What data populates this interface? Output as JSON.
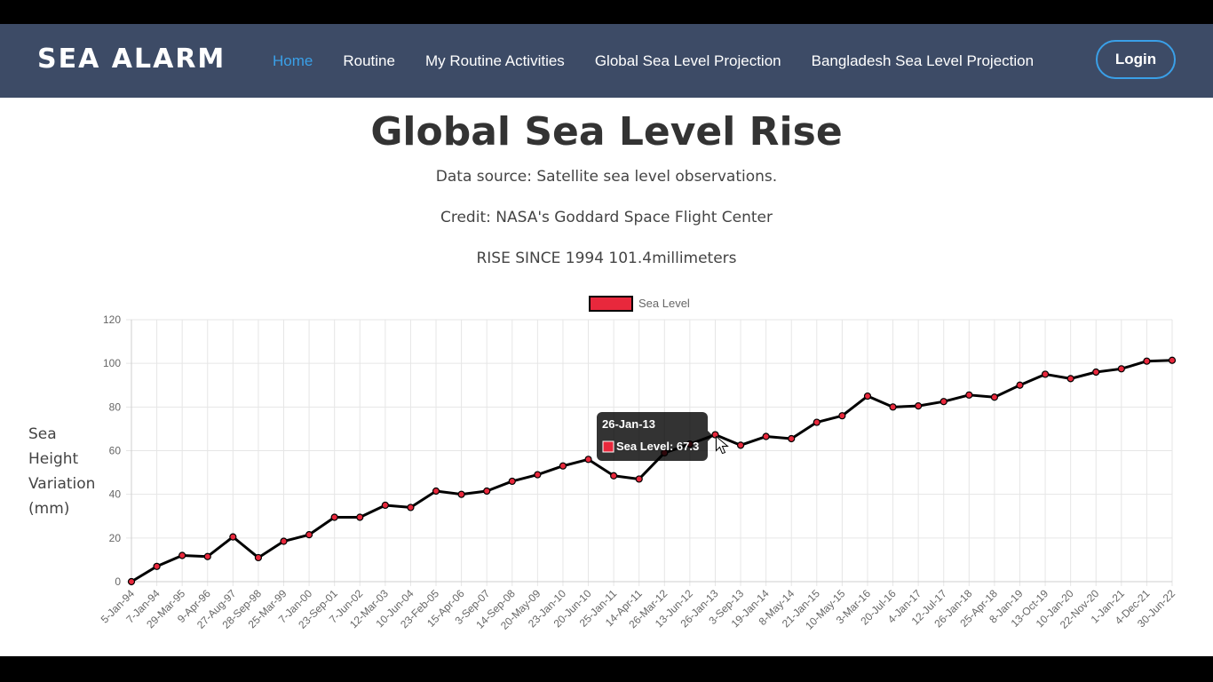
{
  "nav": {
    "brand": "SEA ALARM",
    "items": [
      {
        "label": "Home",
        "active": true
      },
      {
        "label": "Routine",
        "active": false
      },
      {
        "label": "My Routine Activities",
        "active": false
      },
      {
        "label": "Global Sea Level Projection",
        "active": false
      },
      {
        "label": "Bangladesh Sea Level Projection",
        "active": false
      }
    ],
    "login_label": "Login"
  },
  "header": {
    "title": "Global Sea Level Rise",
    "source": "Data source: Satellite sea level observations.",
    "credit": "Credit: NASA's Goddard Space Flight Center",
    "rise": "RISE SINCE 1994 101.4millimeters"
  },
  "side_label": [
    "Sea",
    "Height",
    "Variation",
    "(mm)"
  ],
  "colors": {
    "navbar": "#3d4b66",
    "accent": "#3aa0e8",
    "point_fill": "#e8283c",
    "line": "#000000"
  },
  "tooltip": {
    "title": "26-Jan-13",
    "body": "Sea Level: 67.3"
  },
  "chart_data": {
    "type": "line",
    "legend": "Sea Level",
    "legend_position": "top",
    "grid": true,
    "ylim": [
      0,
      120
    ],
    "yticks": [
      0,
      20,
      40,
      60,
      80,
      100,
      120
    ],
    "categories": [
      "5-Jan-94",
      "7-Jan-94",
      "29-Mar-95",
      "9-Apr-96",
      "27-Aug-97",
      "28-Sep-98",
      "25-Mar-99",
      "7-Jan-00",
      "23-Sep-01",
      "7-Jun-02",
      "12-Mar-03",
      "10-Jun-04",
      "23-Feb-05",
      "15-Apr-06",
      "3-Sep-07",
      "14-Sep-08",
      "20-May-09",
      "23-Jan-10",
      "20-Jun-10",
      "25-Jan-11",
      "14-Apr-11",
      "26-Mar-12",
      "13-Jun-12",
      "26-Jan-13",
      "3-Sep-13",
      "19-Jan-14",
      "8-May-14",
      "21-Jan-15",
      "10-May-15",
      "3-Mar-16",
      "20-Jul-16",
      "4-Jan-17",
      "12-Jul-17",
      "26-Jan-18",
      "25-Apr-18",
      "8-Jan-19",
      "13-Oct-19",
      "10-Jan-20",
      "22-Nov-20",
      "1-Jan-21",
      "4-Dec-21",
      "30-Jun-22"
    ],
    "series": [
      {
        "name": "Sea Level",
        "values": [
          0,
          7,
          12,
          11.5,
          20.5,
          11,
          18.5,
          21.5,
          29.5,
          29.5,
          35,
          34,
          41.5,
          40,
          41.5,
          46,
          49,
          53,
          56,
          48.5,
          47,
          59,
          63,
          67.3,
          62.5,
          66.5,
          65.5,
          73,
          76,
          85,
          80,
          80.5,
          82.5,
          85.5,
          84.5,
          90,
          95,
          93,
          96,
          97.5,
          101,
          101.4
        ]
      }
    ],
    "highlight_index": 23
  }
}
